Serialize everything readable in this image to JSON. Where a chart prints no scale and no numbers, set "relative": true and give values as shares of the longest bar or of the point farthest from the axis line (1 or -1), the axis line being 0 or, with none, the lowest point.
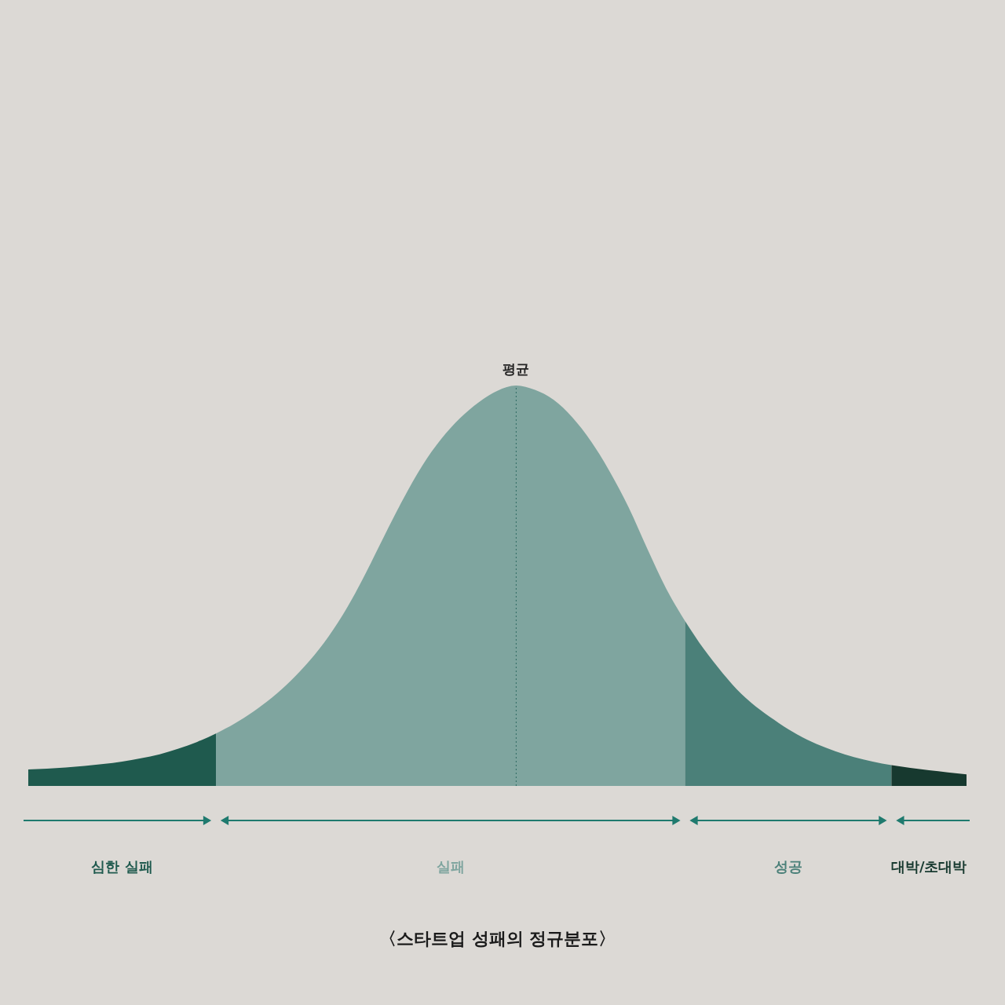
{
  "chart_data": {
    "type": "area",
    "title": "〈스타트업 성패의 정규분포〉",
    "relative": true,
    "categories": [
      null,
      null,
      null,
      null,
      null,
      null,
      null,
      null,
      null,
      null,
      null,
      null,
      null,
      null,
      null,
      null,
      null,
      null,
      null,
      null,
      null,
      null,
      null,
      null,
      null,
      null,
      null,
      null,
      null,
      null,
      null,
      null,
      null,
      null,
      null,
      null,
      null,
      null,
      null,
      null,
      null,
      null,
      null,
      null,
      null,
      null,
      null,
      null,
      null,
      null,
      null
    ],
    "series": [
      {
        "name": "심한 실패",
        "color": "#1f5a4e",
        "values": [
          0.041,
          0.043,
          0.046,
          0.05,
          0.055,
          0.061,
          0.069,
          0.079,
          0.093,
          0.11,
          0.131,
          null,
          null,
          null,
          null,
          null,
          null,
          null,
          null,
          null,
          null,
          null,
          null,
          null,
          null,
          null,
          null,
          null,
          null,
          null,
          null,
          null,
          null,
          null,
          null,
          null,
          null,
          null,
          null,
          null,
          null,
          null,
          null,
          null,
          null,
          null,
          null,
          null,
          null,
          null,
          null
        ]
      },
      {
        "name": "실패",
        "color": "#7fa59f",
        "values": [
          null,
          null,
          null,
          null,
          null,
          null,
          null,
          null,
          null,
          null,
          0.131,
          0.156,
          0.186,
          0.221,
          0.263,
          0.313,
          0.373,
          0.446,
          0.533,
          0.627,
          0.718,
          0.8,
          0.866,
          0.918,
          0.958,
          0.987,
          1,
          0.989,
          0.964,
          0.92,
          0.86,
          0.784,
          0.695,
          0.591,
          0.492,
          0.412,
          null,
          null,
          null,
          null,
          null,
          null,
          null,
          null,
          null,
          null,
          null,
          null,
          null,
          null,
          null
        ]
      },
      {
        "name": "성공",
        "color": "#4b8079",
        "values": [
          null,
          null,
          null,
          null,
          null,
          null,
          null,
          null,
          null,
          null,
          null,
          null,
          null,
          null,
          null,
          null,
          null,
          null,
          null,
          null,
          null,
          null,
          null,
          null,
          null,
          null,
          null,
          null,
          null,
          null,
          null,
          null,
          null,
          null,
          null,
          0.412,
          0.342,
          0.282,
          0.23,
          0.19,
          0.157,
          0.128,
          0.105,
          0.087,
          0.072,
          0.061,
          0.052,
          null,
          null,
          null,
          null
        ]
      },
      {
        "name": "대박/초대박",
        "color": "#17392f",
        "values": [
          null,
          null,
          null,
          null,
          null,
          null,
          null,
          null,
          null,
          null,
          null,
          null,
          null,
          null,
          null,
          null,
          null,
          null,
          null,
          null,
          null,
          null,
          null,
          null,
          null,
          null,
          null,
          null,
          null,
          null,
          null,
          null,
          null,
          null,
          null,
          null,
          null,
          null,
          null,
          null,
          null,
          null,
          null,
          null,
          null,
          null,
          0.052,
          0.045,
          0.039,
          0.034,
          0.029
        ]
      }
    ],
    "annotations": [
      {
        "text": "평균",
        "y": 1
      }
    ]
  }
}
